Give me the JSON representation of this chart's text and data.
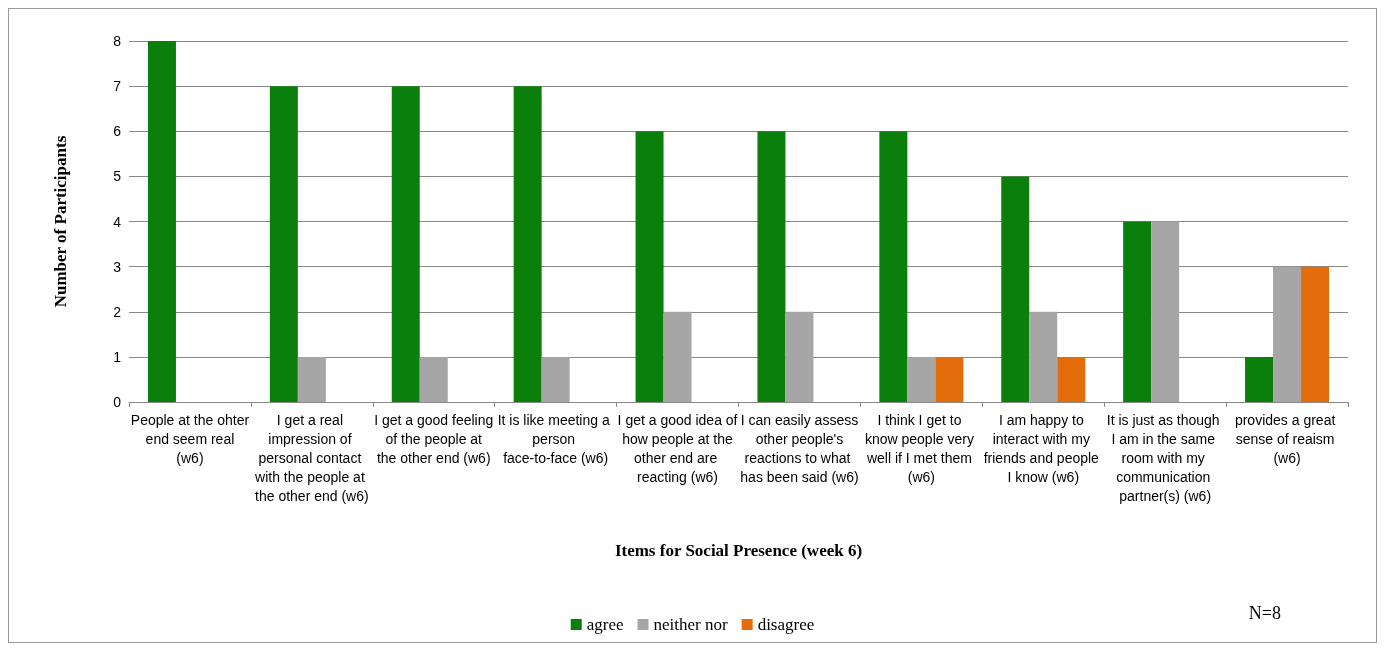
{
  "chart_data": {
    "type": "bar",
    "xlabel": "Items for Social Presence (week 6)",
    "ylabel": "Number of Participants",
    "categories": [
      "People at the ohter end seem real (w6)",
      "I get a real impression of personal contact with the people at the other end (w6)",
      "I get a good feeling of the people at the other end (w6)",
      "It is like meeting a person face-to-face (w6)",
      "I get a good idea of how people at the other end are reacting (w6)",
      "I can easily assess other people's reactions to what has been said (w6)",
      "I think I get to know people very well if I met them (w6)",
      "I am happy to interact with my friends and people I know (w6)",
      "It is just as though I am in the same room with my communication partner(s) (w6)",
      "provides a great sense of reaism (w6)"
    ],
    "series": [
      {
        "name": "agree",
        "color": "#0b7f0b",
        "values": [
          8,
          7,
          7,
          7,
          6,
          6,
          6,
          5,
          4,
          1
        ]
      },
      {
        "name": "neither nor",
        "color": "#a6a6a6",
        "values": [
          0,
          1,
          1,
          1,
          2,
          2,
          1,
          2,
          4,
          3
        ]
      },
      {
        "name": "disagree",
        "color": "#e46c0a",
        "values": [
          0,
          0,
          0,
          0,
          0,
          0,
          1,
          1,
          0,
          3
        ]
      }
    ],
    "ylim": [
      0,
      8
    ],
    "yticks": [
      0,
      1,
      2,
      3,
      4,
      5,
      6,
      7,
      8
    ],
    "grid": "y",
    "legend": "bottom",
    "annotations": [
      "N=8"
    ]
  }
}
